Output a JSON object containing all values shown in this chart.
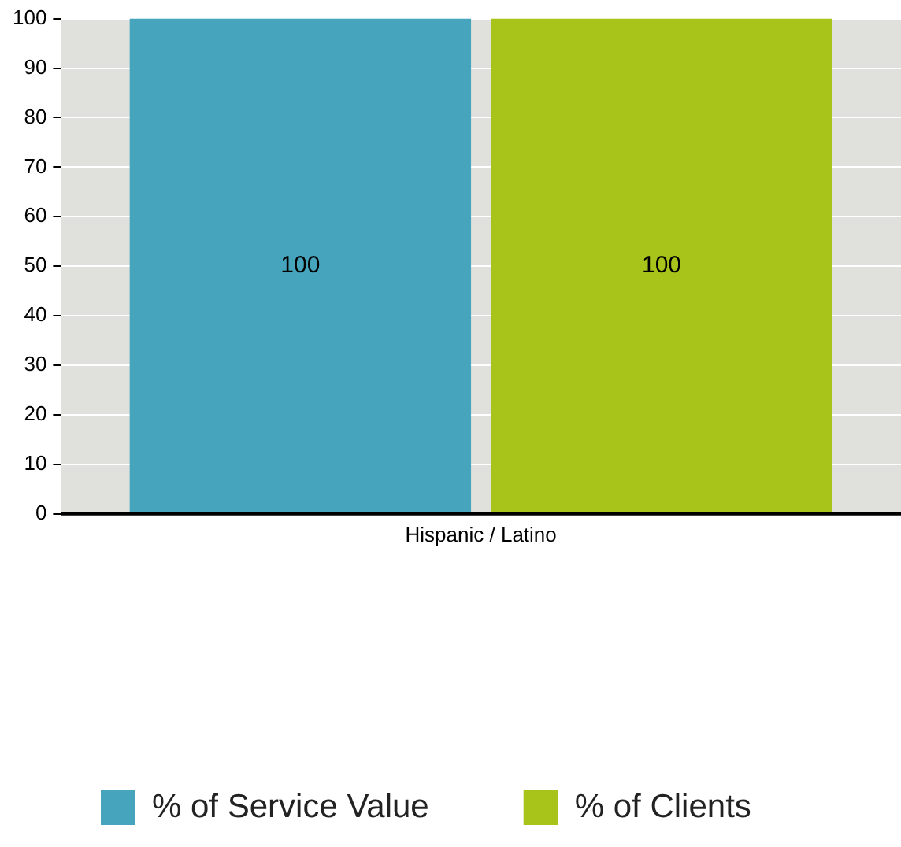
{
  "chart_data": {
    "type": "bar",
    "categories": [
      "Hispanic / Latino"
    ],
    "series": [
      {
        "name": "% of Service Value",
        "color": "#46a4bd",
        "values": [
          100
        ]
      },
      {
        "name": "% of Clients",
        "color": "#a8c41a",
        "values": [
          100
        ]
      }
    ],
    "ylim": [
      0,
      100
    ],
    "yticks": [
      0,
      10,
      20,
      30,
      40,
      50,
      60,
      70,
      80,
      90,
      100
    ],
    "grid": "y",
    "legend": "bottom",
    "data_labels": true
  }
}
